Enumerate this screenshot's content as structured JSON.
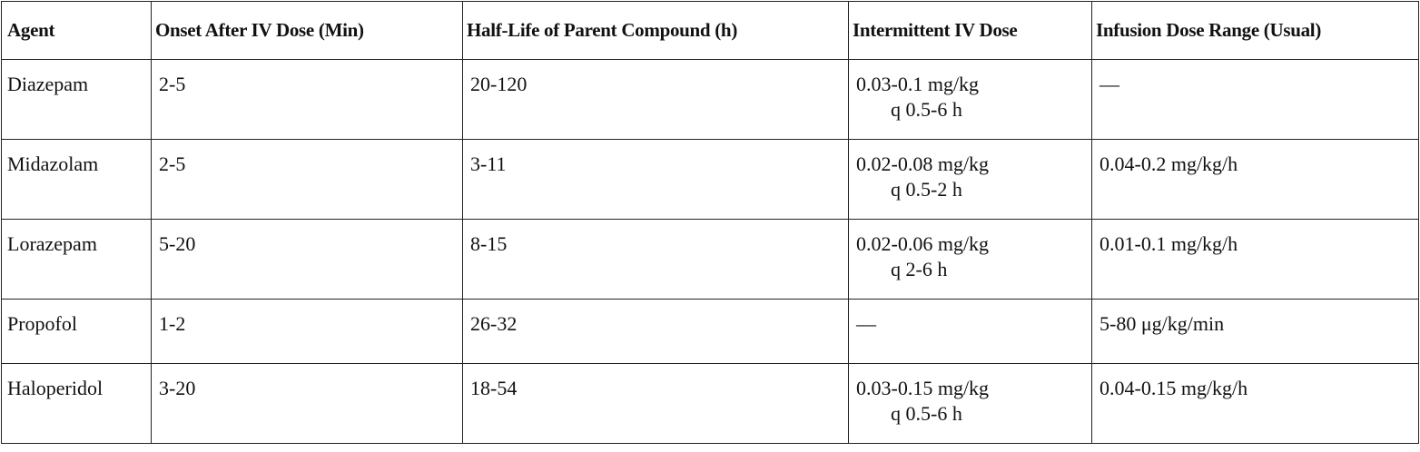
{
  "table": {
    "header": [
      "Agent",
      "Onset After IV Dose (Min)",
      "Half-Life of Parent Compound (h)",
      "Intermittent IV Dose",
      "Infusion Dose Range (Usual)"
    ],
    "rows": [
      [
        "Diazepam",
        "2-5",
        "20-120",
        [
          "0.03-0.1 mg/kg",
          "q 0.5-6 h"
        ],
        "—"
      ],
      [
        "Midazolam",
        "2-5",
        "3-11",
        [
          "0.02-0.08 mg/kg",
          "q 0.5-2 h"
        ],
        "0.04-0.2 mg/kg/h"
      ],
      [
        "Lorazepam",
        "5-20",
        "8-15",
        [
          "0.02-0.06 mg/kg",
          "q 2-6 h"
        ],
        "0.01-0.1 mg/kg/h"
      ],
      [
        "Propofol",
        "1-2",
        "26-32",
        "—",
        "5-80 μg/kg/min"
      ],
      [
        "Haloperidol",
        "3-20",
        "18-54",
        [
          "0.03-0.15 mg/kg",
          "q 0.5-6 h"
        ],
        "0.04-0.15 mg/kg/h"
      ]
    ]
  }
}
